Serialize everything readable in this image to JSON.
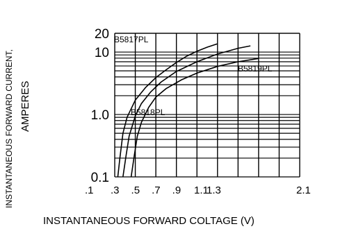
{
  "chart_data": {
    "type": "line",
    "title": "",
    "xlabel": "INSTANTANEOUS FORWARD COLTAGE (V)",
    "ylabel_line1": "INSTANTANEOUS FORWARD CURRENT,",
    "ylabel_line2": "AMPERES",
    "y_scale": "log",
    "x_scale": "linear",
    "grid": true,
    "xlim": [
      0.1,
      2.2
    ],
    "ylim": [
      0.1,
      20
    ],
    "x_ticks": [
      {
        "value": 0.1,
        "label": ".1"
      },
      {
        "value": 0.3,
        "label": ".3"
      },
      {
        "value": 0.5,
        "label": ".5"
      },
      {
        "value": 0.7,
        "label": ".7"
      },
      {
        "value": 0.9,
        "label": ".9"
      },
      {
        "value": 1.1,
        "label": "1.1"
      },
      {
        "value": 1.3,
        "label": "1.3"
      },
      {
        "value": 2.1,
        "label": "2.1"
      }
    ],
    "y_ticks": [
      {
        "value": 0.1,
        "label": "0.1"
      },
      {
        "value": 1.0,
        "label": "1.0"
      },
      {
        "value": 10,
        "label": "10"
      },
      {
        "value": 20,
        "label": "20"
      }
    ],
    "series": [
      {
        "name": "B5817PL",
        "points": [
          [
            0.33,
            0.1
          ],
          [
            0.35,
            0.2
          ],
          [
            0.38,
            0.5
          ],
          [
            0.42,
            0.9
          ],
          [
            0.5,
            1.7
          ],
          [
            0.6,
            2.7
          ],
          [
            0.7,
            3.9
          ],
          [
            0.8,
            5.2
          ],
          [
            0.9,
            6.8
          ],
          [
            1.0,
            8.6
          ],
          [
            1.1,
            10.3
          ],
          [
            1.2,
            12.0
          ],
          [
            1.3,
            13.6
          ]
        ]
      },
      {
        "name": "B5818PL",
        "points": [
          [
            0.38,
            0.1
          ],
          [
            0.41,
            0.22
          ],
          [
            0.44,
            0.45
          ],
          [
            0.5,
            0.95
          ],
          [
            0.56,
            1.5
          ],
          [
            0.65,
            2.3
          ],
          [
            0.75,
            3.3
          ],
          [
            0.9,
            4.9
          ],
          [
            1.1,
            7.0
          ],
          [
            1.3,
            9.3
          ],
          [
            1.5,
            11.5
          ],
          [
            1.62,
            12.6
          ]
        ]
      },
      {
        "name": "B5819PL",
        "points": [
          [
            0.46,
            0.1
          ],
          [
            0.49,
            0.22
          ],
          [
            0.52,
            0.45
          ],
          [
            0.56,
            0.75
          ],
          [
            0.63,
            1.3
          ],
          [
            0.7,
            1.9
          ],
          [
            0.8,
            2.6
          ],
          [
            0.95,
            3.6
          ],
          [
            1.1,
            4.6
          ],
          [
            1.3,
            5.9
          ],
          [
            1.5,
            7.0
          ],
          [
            1.7,
            7.9
          ]
        ]
      }
    ],
    "series_label_text": [
      "B5817PL",
      "B5818PL",
      "B5819PL"
    ]
  }
}
